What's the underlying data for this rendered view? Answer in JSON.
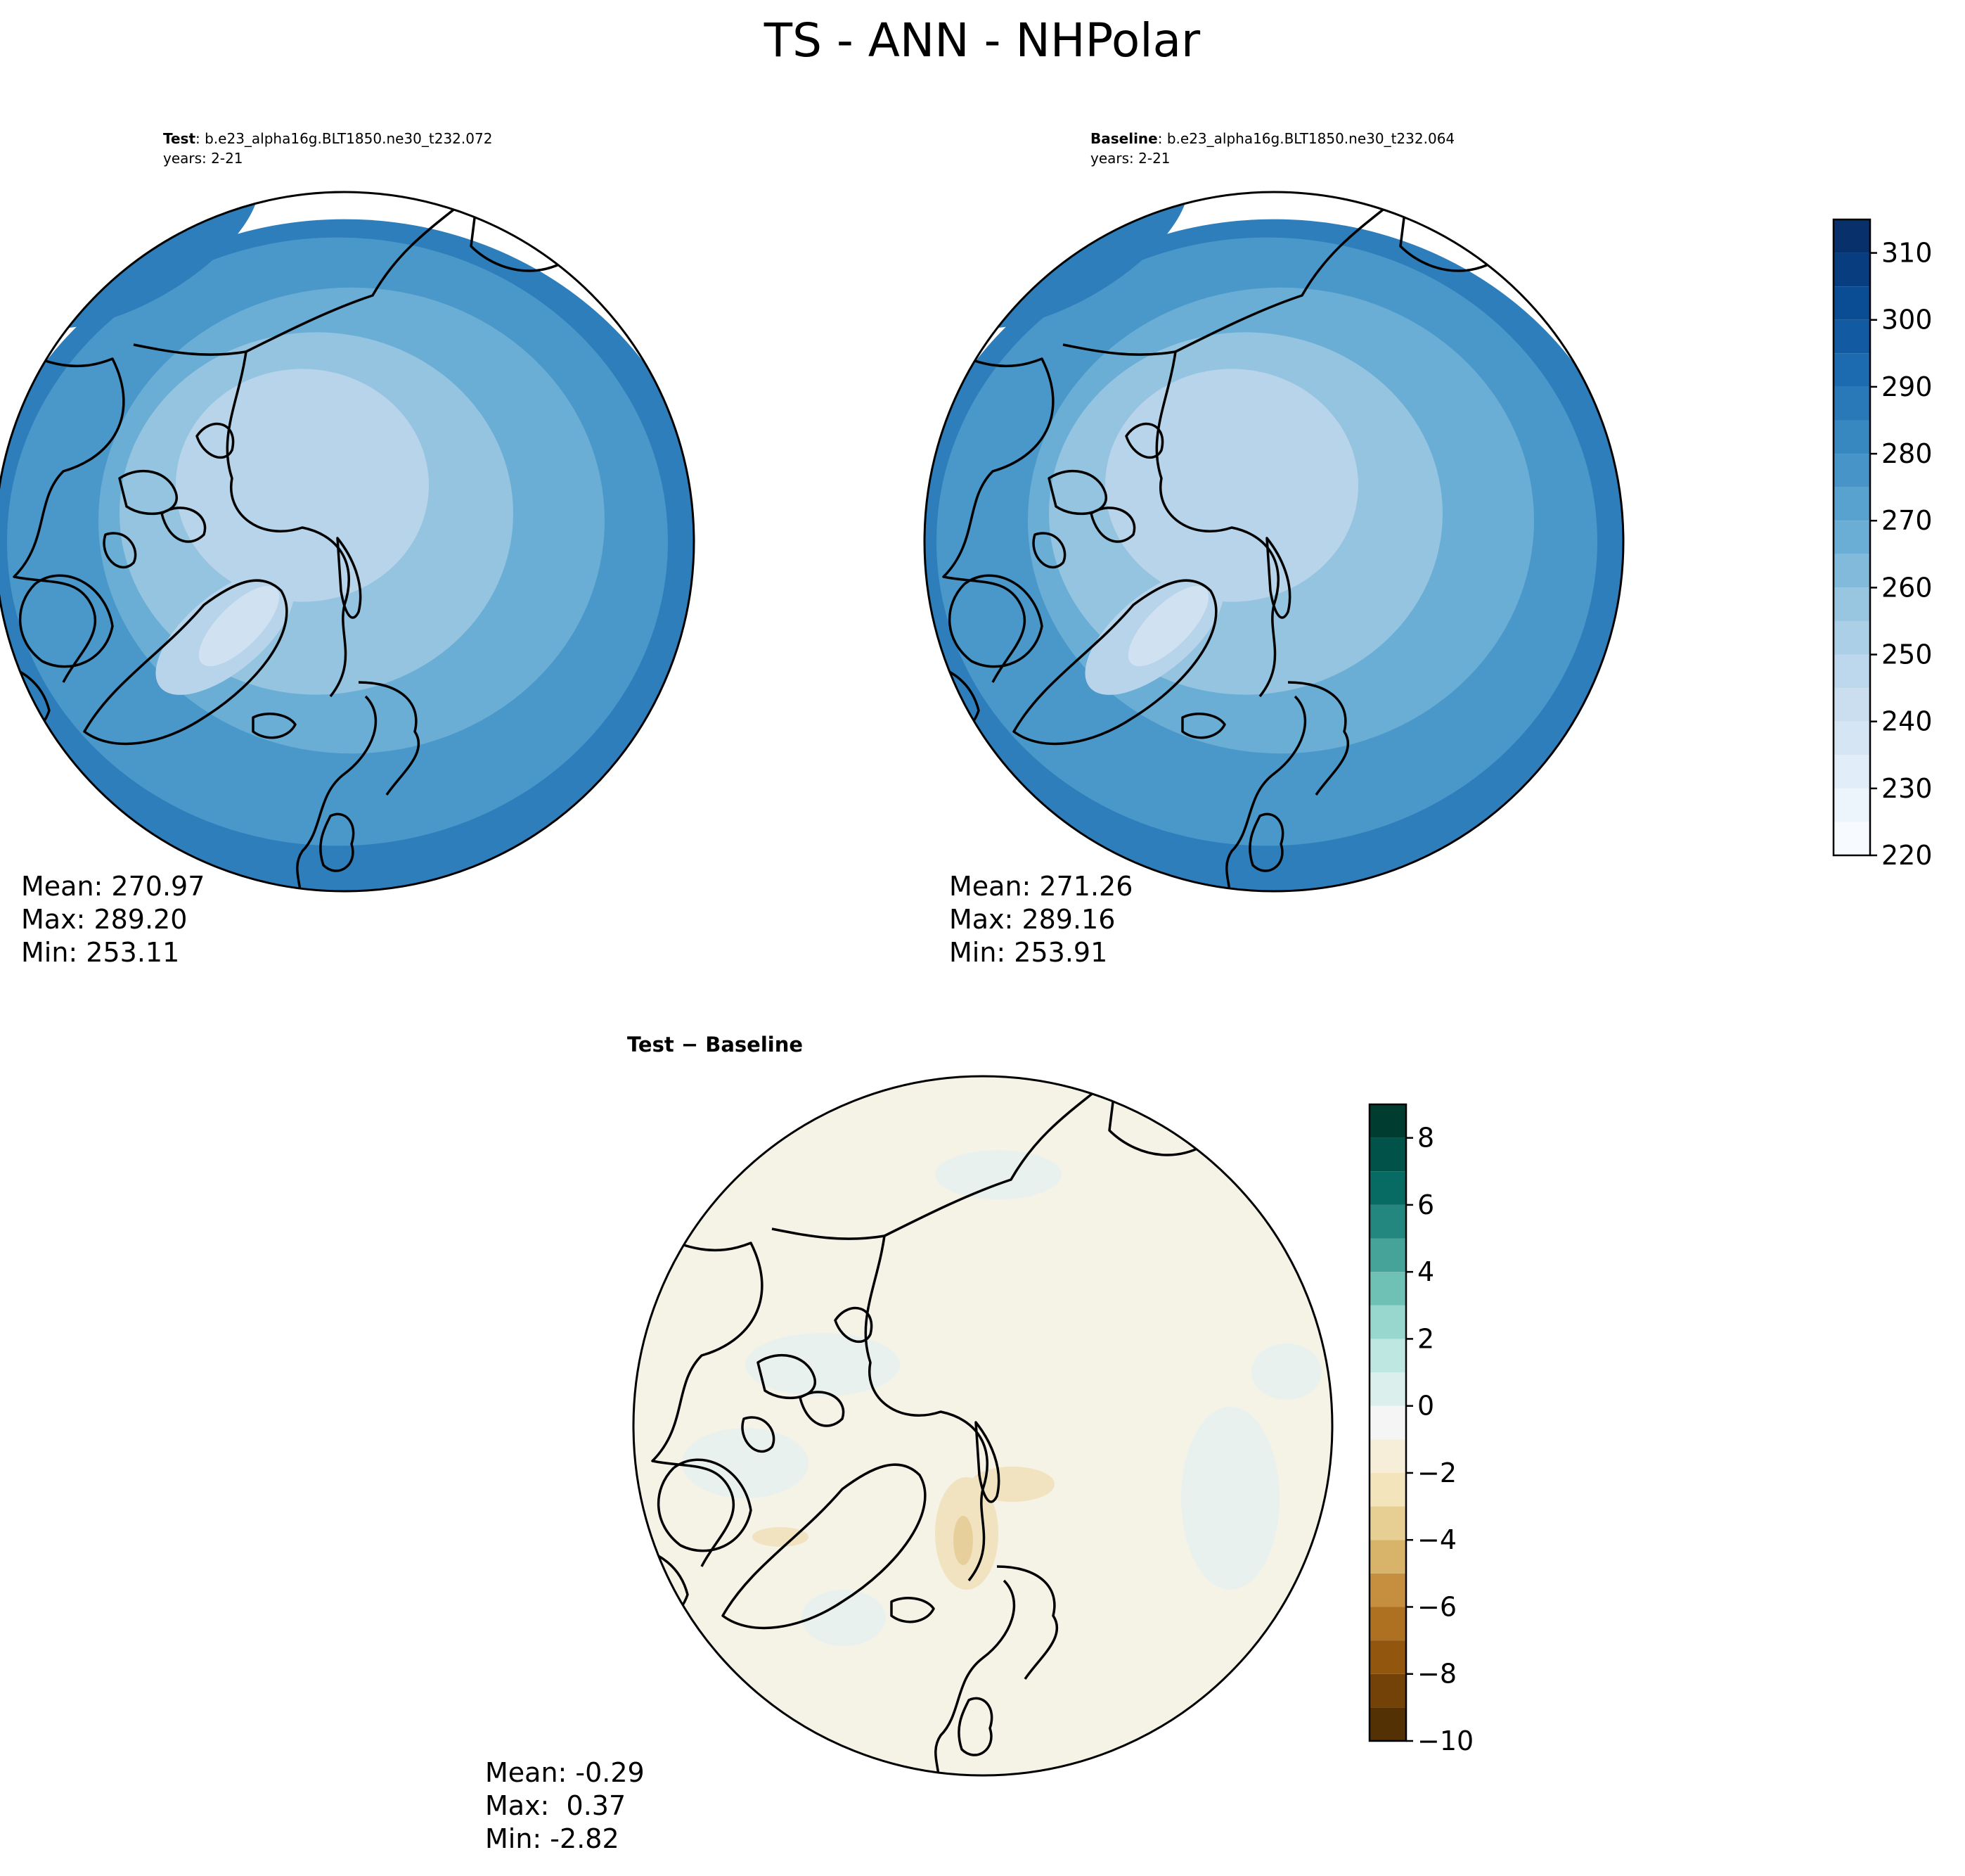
{
  "title": "TS - ANN - NHPolar",
  "colors": {
    "sequential": [
      "#f7fbff",
      "#e3eef9",
      "#d0e1f2",
      "#b7d4ea",
      "#94c4df",
      "#6aaed6",
      "#4a98c9",
      "#2e7ebc",
      "#1764ab",
      "#084a91",
      "#08306b"
    ],
    "diverging": [
      "#543005",
      "#8c510a",
      "#bf812d",
      "#dfc27d",
      "#f6e8c3",
      "#f5f5f5",
      "#c7eae5",
      "#80cdc1",
      "#35978f",
      "#01665e",
      "#003c30"
    ],
    "land_outline": "#000000"
  },
  "chart_data": [
    {
      "type": "heatmap",
      "projection": "north-polar-stereographic",
      "panel": "test",
      "label_bold": "Test",
      "label_rest": ": b.e23_alpha16g.BLT1850.ne30_t232.072",
      "years": "years: 2-21",
      "stats": [
        "Mean: 270.97",
        "Max: 289.20",
        "Min: 253.11"
      ],
      "field_summary": {
        "mean": 270.97,
        "max": 289.2,
        "min": 253.11
      }
    },
    {
      "type": "heatmap",
      "projection": "north-polar-stereographic",
      "panel": "baseline",
      "label_bold": "Baseline",
      "label_rest": ": b.e23_alpha16g.BLT1850.ne30_t232.064",
      "years": "years: 2-21",
      "stats": [
        "Mean: 271.26",
        "Max: 289.16",
        "Min: 253.91"
      ],
      "field_summary": {
        "mean": 271.26,
        "max": 289.16,
        "min": 253.91
      },
      "colorbar": {
        "range": [
          220,
          315
        ],
        "ticks": [
          220,
          230,
          240,
          250,
          260,
          270,
          280,
          290,
          300,
          310
        ],
        "tick_labels": [
          "220",
          "230",
          "240",
          "250",
          "260",
          "270",
          "280",
          "290",
          "300",
          "310"
        ],
        "colormap": "Blues"
      }
    },
    {
      "type": "heatmap",
      "projection": "north-polar-stereographic",
      "panel": "difference",
      "label_bold": "Test − Baseline",
      "stats": [
        "Mean: -0.29",
        "Max:  0.37",
        "Min: -2.82"
      ],
      "field_summary": {
        "mean": -0.29,
        "max": 0.37,
        "min": -2.82
      },
      "colorbar": {
        "range": [
          -10,
          9
        ],
        "ticks": [
          -10,
          -8,
          -6,
          -4,
          -2,
          0,
          2,
          4,
          6,
          8
        ],
        "tick_labels": [
          "−10",
          "−8",
          "−6",
          "−4",
          "−2",
          "0",
          "2",
          "4",
          "6",
          "8"
        ],
        "colormap": "BrBG"
      }
    }
  ]
}
